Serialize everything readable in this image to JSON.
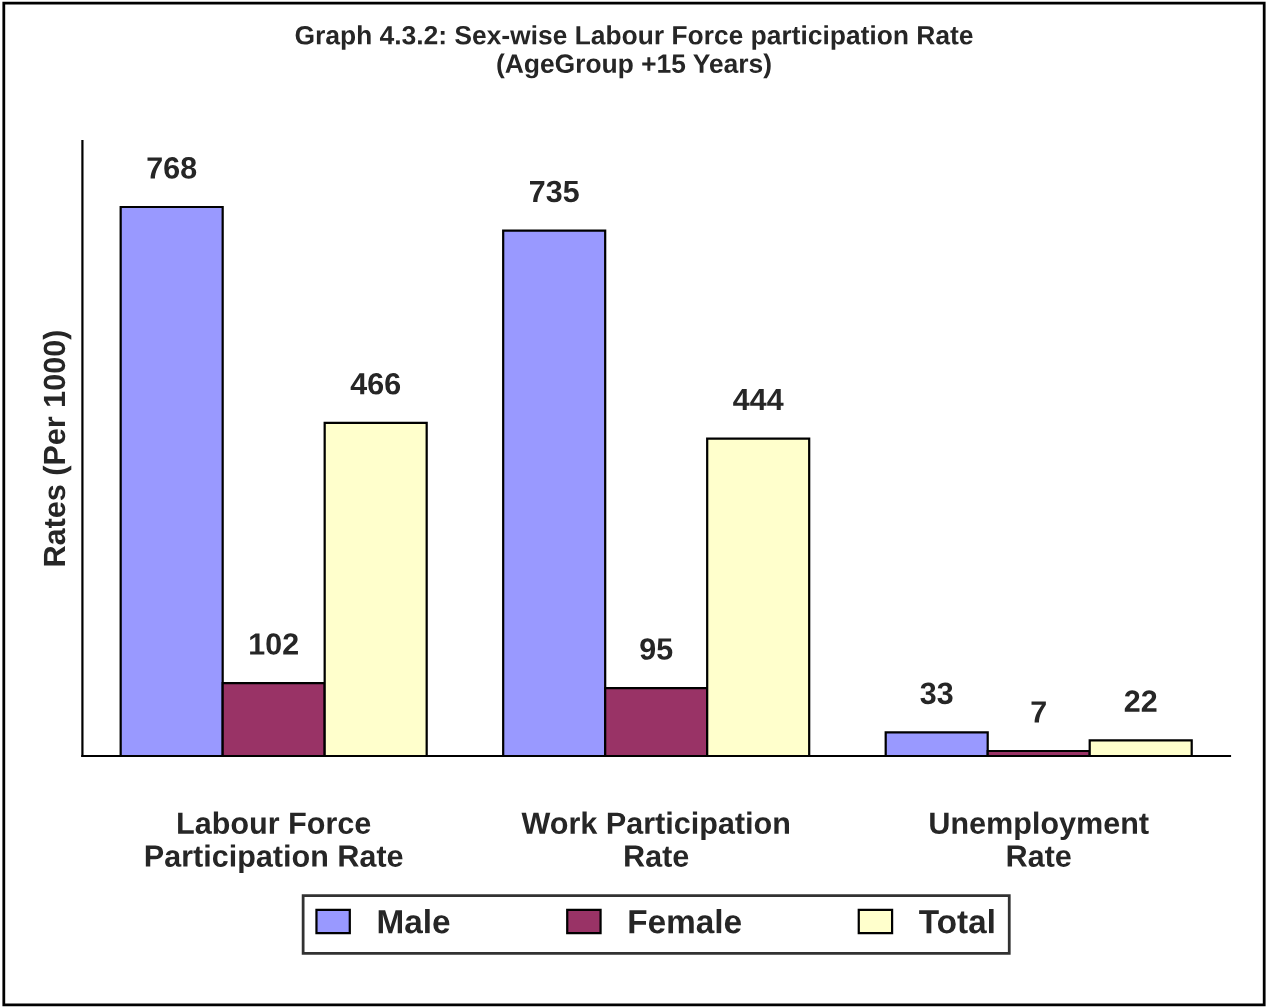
{
  "chart_data": {
    "type": "bar",
    "title": "Graph 4.3.2: Sex-wise Labour Force participation Rate\n(AgeGroup +15 Years)",
    "ylabel": "Rates (Per 1000)",
    "categories": [
      "Labour Force\nParticipation Rate",
      "Work Participation\nRate",
      "Unemployment\nRate"
    ],
    "series": [
      {
        "name": "Male",
        "color": "#9999ff",
        "values": [
          768,
          735,
          33
        ]
      },
      {
        "name": "Female",
        "color": "#993366",
        "values": [
          102,
          95,
          7
        ]
      },
      {
        "name": "Total",
        "color": "#ffffcc",
        "values": [
          466,
          444,
          22
        ]
      }
    ],
    "data_labels": true,
    "legend": "bottom",
    "grid": false
  }
}
